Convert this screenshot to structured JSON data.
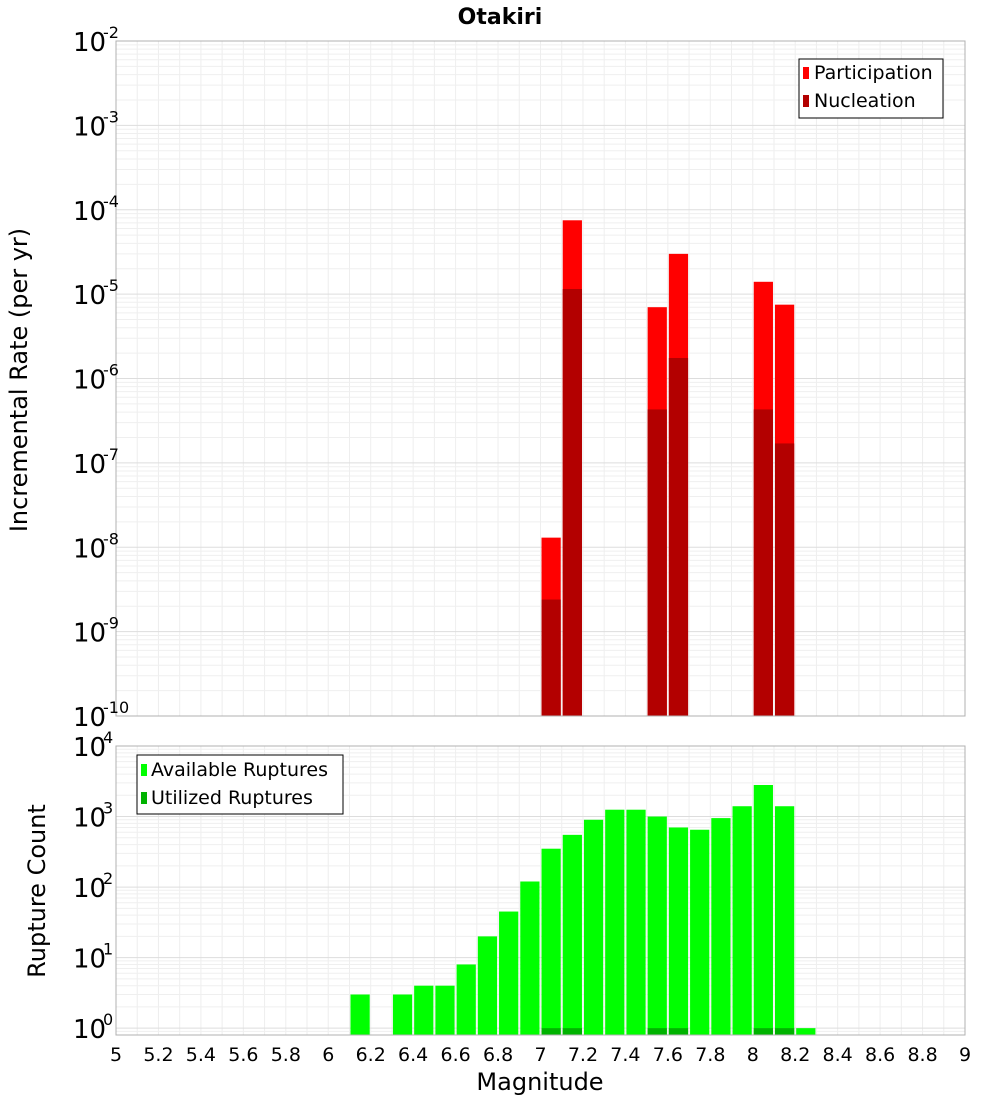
{
  "chart_data": [
    {
      "type": "bar",
      "title": "Otakiri",
      "xlabel": "",
      "ylabel": "Incremental Rate (per yr)",
      "yscale": "log",
      "ylim": [
        1e-10,
        0.01
      ],
      "xlim": [
        5,
        9
      ],
      "grid": true,
      "legend_position": "top-right",
      "bar_width": 0.1,
      "y_ticks": [
        {
          "base": "10",
          "exp": "-10",
          "value": 1e-10
        },
        {
          "base": "10",
          "exp": "-9",
          "value": 1e-09
        },
        {
          "base": "10",
          "exp": "-8",
          "value": 1e-08
        },
        {
          "base": "10",
          "exp": "-7",
          "value": 1e-07
        },
        {
          "base": "10",
          "exp": "-6",
          "value": 1e-06
        },
        {
          "base": "10",
          "exp": "-5",
          "value": 1e-05
        },
        {
          "base": "10",
          "exp": "-4",
          "value": 0.0001
        },
        {
          "base": "10",
          "exp": "-3",
          "value": 0.001
        },
        {
          "base": "10",
          "exp": "-2",
          "value": 0.01
        }
      ],
      "series": [
        {
          "name": "Participation",
          "color": "#ff0000",
          "x": [
            7.05,
            7.15,
            7.55,
            7.65,
            8.05,
            8.15
          ],
          "values": [
            1.3e-08,
            7.5e-05,
            7e-06,
            3e-05,
            1.4e-05,
            7.5e-06
          ]
        },
        {
          "name": "Nucleation",
          "color": "#b30000",
          "x": [
            7.05,
            7.15,
            7.55,
            7.65,
            8.05,
            8.15
          ],
          "values": [
            2.4e-09,
            1.15e-05,
            4.3e-07,
            1.75e-06,
            4.3e-07,
            1.7e-07
          ]
        }
      ]
    },
    {
      "type": "bar",
      "title": "",
      "xlabel": "Magnitude",
      "ylabel": "Rupture Count",
      "yscale": "log",
      "ylim": [
        0.8,
        10000.0
      ],
      "xlim": [
        5,
        9
      ],
      "grid": true,
      "legend_position": "top-left",
      "bar_width": 0.1,
      "y_ticks": [
        {
          "base": "10",
          "exp": "0",
          "value": 1
        },
        {
          "base": "10",
          "exp": "1",
          "value": 10
        },
        {
          "base": "10",
          "exp": "2",
          "value": 100
        },
        {
          "base": "10",
          "exp": "3",
          "value": 1000
        },
        {
          "base": "10",
          "exp": "4",
          "value": 10000
        }
      ],
      "x_ticks": [
        "5",
        "5.2",
        "5.4",
        "5.6",
        "5.8",
        "6",
        "6.2",
        "6.4",
        "6.6",
        "6.8",
        "7",
        "7.2",
        "7.4",
        "7.6",
        "7.8",
        "8",
        "8.2",
        "8.4",
        "8.6",
        "8.8",
        "9"
      ],
      "series": [
        {
          "name": "Available Ruptures",
          "color": "#00ff00",
          "x": [
            6.15,
            6.35,
            6.45,
            6.55,
            6.65,
            6.75,
            6.85,
            6.95,
            7.05,
            7.15,
            7.25,
            7.35,
            7.45,
            7.55,
            7.65,
            7.75,
            7.85,
            7.95,
            8.05,
            8.15,
            8.25
          ],
          "values": [
            3,
            3,
            4,
            4,
            8,
            20,
            45,
            120,
            350,
            550,
            900,
            1250,
            1250,
            1000,
            700,
            650,
            950,
            1400,
            2800,
            1400,
            1
          ]
        },
        {
          "name": "Utilized Ruptures",
          "color": "#00b300",
          "x": [
            7.05,
            7.15,
            7.55,
            7.65,
            8.05,
            8.15
          ],
          "values": [
            1,
            1,
            1,
            1,
            1,
            1
          ]
        }
      ]
    }
  ]
}
